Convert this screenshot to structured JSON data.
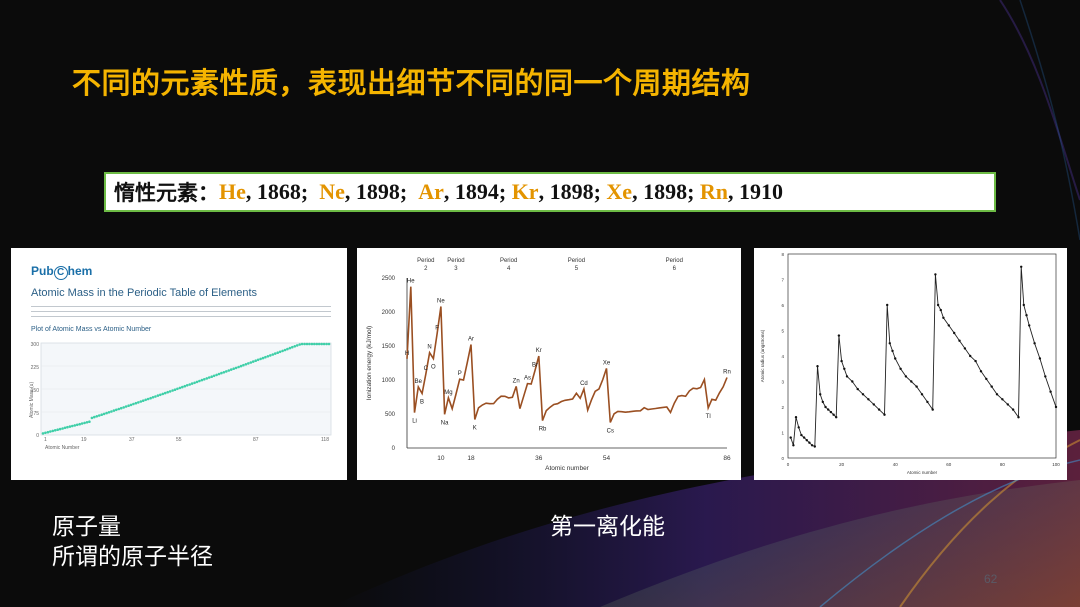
{
  "title": "不同的元素性质，表现出细节不同的同一个周期结构",
  "noble_gases": {
    "lead": "惰性元素：",
    "entries": [
      {
        "symbol": "He",
        "year": "1868",
        "sep": ";"
      },
      {
        "symbol": "Ne",
        "year": "1898",
        "sep": ";"
      },
      {
        "symbol": "Ar",
        "year": "1894",
        "sep": ";"
      },
      {
        "symbol": "Kr",
        "year": "1898",
        "sep": ";"
      },
      {
        "symbol": "Xe",
        "year": "1898",
        "sep": ";"
      },
      {
        "symbol": "Rn",
        "year": "1910",
        "sep": ""
      }
    ],
    "accent_color": "#e39400",
    "border_color": "#6dbb45"
  },
  "pubchem": {
    "logo_left": "Pub",
    "logo_circle": "C",
    "logo_right": "hem",
    "title": "Atomic Mass in the Periodic Table of Elements",
    "plot_title": "Plot of Atomic Mass vs Atomic Number",
    "ylabel": "Atomic Mass (u)",
    "xlabel": "Atomic Number",
    "yticks": [
      "300",
      "225",
      "150",
      "75",
      "0"
    ],
    "xticks": [
      "1",
      "19",
      "37",
      "55",
      "87",
      "118"
    ]
  },
  "chart_data": [
    {
      "type": "line",
      "title": "",
      "xlabel": "Atomic number",
      "ylabel": "Ionization energy (kJ/mol)",
      "xlim": [
        1,
        86
      ],
      "ylim": [
        0,
        2500
      ],
      "xticks": [
        "10",
        "18",
        "36",
        "54",
        "86"
      ],
      "yticks": [
        "0",
        "500",
        "1000",
        "1500",
        "2000",
        "2500"
      ],
      "period_labels": [
        {
          "label": "Period",
          "num": "2",
          "x": 6
        },
        {
          "label": "Period",
          "num": "3",
          "x": 14
        },
        {
          "label": "Period",
          "num": "4",
          "x": 28
        },
        {
          "label": "Period",
          "num": "5",
          "x": 46
        },
        {
          "label": "Period",
          "num": "6",
          "x": 72
        }
      ],
      "x": [
        1,
        2,
        3,
        4,
        5,
        6,
        7,
        8,
        9,
        10,
        11,
        12,
        13,
        14,
        15,
        16,
        17,
        18,
        19,
        20,
        21,
        22,
        23,
        24,
        25,
        26,
        27,
        28,
        29,
        30,
        31,
        32,
        33,
        34,
        35,
        36,
        37,
        38,
        39,
        40,
        41,
        42,
        43,
        44,
        45,
        46,
        47,
        48,
        49,
        50,
        51,
        52,
        53,
        54,
        55,
        56,
        57,
        58,
        59,
        60,
        61,
        62,
        63,
        64,
        65,
        66,
        67,
        68,
        69,
        70,
        71,
        72,
        73,
        74,
        75,
        76,
        77,
        78,
        79,
        80,
        81,
        82,
        83,
        84,
        85,
        86
      ],
      "values": [
        1312,
        2372,
        520,
        899,
        801,
        1086,
        1402,
        1314,
        1681,
        2081,
        496,
        738,
        578,
        787,
        1012,
        1000,
        1251,
        1521,
        419,
        590,
        633,
        659,
        651,
        653,
        717,
        762,
        760,
        737,
        745,
        906,
        579,
        762,
        947,
        941,
        1140,
        1351,
        403,
        550,
        600,
        640,
        652,
        684,
        702,
        710,
        720,
        804,
        731,
        868,
        558,
        709,
        834,
        869,
        1008,
        1170,
        376,
        503,
        538,
        534,
        527,
        533,
        540,
        545,
        547,
        593,
        566,
        573,
        581,
        589,
        597,
        603,
        524,
        659,
        761,
        770,
        760,
        840,
        880,
        870,
        890,
        1007,
        589,
        716,
        703,
        812,
        900,
        1037
      ],
      "labels": [
        {
          "text": "He",
          "x": 2
        },
        {
          "text": "H",
          "x": 1
        },
        {
          "text": "Li",
          "x": 3
        },
        {
          "text": "Be",
          "x": 4
        },
        {
          "text": "B",
          "x": 5
        },
        {
          "text": "C",
          "x": 6
        },
        {
          "text": "N",
          "x": 7
        },
        {
          "text": "O",
          "x": 8
        },
        {
          "text": "F",
          "x": 9
        },
        {
          "text": "Ne",
          "x": 10
        },
        {
          "text": "Na",
          "x": 11
        },
        {
          "text": "Mg",
          "x": 12
        },
        {
          "text": "P",
          "x": 15
        },
        {
          "text": "Ar",
          "x": 18
        },
        {
          "text": "K",
          "x": 19
        },
        {
          "text": "Zn",
          "x": 30
        },
        {
          "text": "As",
          "x": 33
        },
        {
          "text": "Br",
          "x": 35
        },
        {
          "text": "Kr",
          "x": 36
        },
        {
          "text": "Rb",
          "x": 37
        },
        {
          "text": "Cd",
          "x": 48
        },
        {
          "text": "Xe",
          "x": 54
        },
        {
          "text": "Cs",
          "x": 55
        },
        {
          "text": "Tl",
          "x": 81
        },
        {
          "text": "Rn",
          "x": 86
        }
      ]
    },
    {
      "type": "line",
      "title": "",
      "xlabel": "Atomic number",
      "ylabel": "Atomic radius (angstroms)",
      "xlim": [
        0,
        100
      ],
      "ylim": [
        0,
        8
      ],
      "xticks": [
        "0",
        "20",
        "40",
        "60",
        "80",
        "100"
      ],
      "yticks": [
        "0",
        "1",
        "2",
        "3",
        "4",
        "5",
        "6",
        "7",
        "8"
      ],
      "x": [
        1,
        2,
        3,
        4,
        5,
        6,
        7,
        8,
        9,
        10,
        11,
        12,
        13,
        14,
        15,
        16,
        17,
        18,
        19,
        20,
        21,
        22,
        24,
        26,
        28,
        30,
        32,
        34,
        36,
        37,
        38,
        39,
        40,
        42,
        44,
        46,
        48,
        50,
        52,
        54,
        55,
        56,
        57,
        58,
        60,
        62,
        64,
        66,
        68,
        70,
        72,
        74,
        76,
        78,
        80,
        82,
        84,
        86,
        87,
        88,
        89,
        90,
        92,
        94,
        96,
        98,
        100
      ],
      "values": [
        0.8,
        0.5,
        1.6,
        1.2,
        0.9,
        0.8,
        0.7,
        0.6,
        0.5,
        0.45,
        3.6,
        2.5,
        2.2,
        2.0,
        1.9,
        1.8,
        1.7,
        1.6,
        4.8,
        3.8,
        3.5,
        3.2,
        3.0,
        2.7,
        2.5,
        2.3,
        2.1,
        1.9,
        1.7,
        6.0,
        4.5,
        4.2,
        3.9,
        3.5,
        3.2,
        3.0,
        2.8,
        2.5,
        2.2,
        1.9,
        7.2,
        6.0,
        5.8,
        5.5,
        5.2,
        4.9,
        4.6,
        4.3,
        4.0,
        3.8,
        3.4,
        3.1,
        2.8,
        2.5,
        2.3,
        2.1,
        1.9,
        1.6,
        7.5,
        6.0,
        5.6,
        5.2,
        4.5,
        3.9,
        3.2,
        2.6,
        2.0
      ]
    }
  ],
  "captions": {
    "left_line1": "原子量",
    "left_line2": "所谓的原子半径",
    "center": "第一离化能"
  },
  "page_number": "62"
}
